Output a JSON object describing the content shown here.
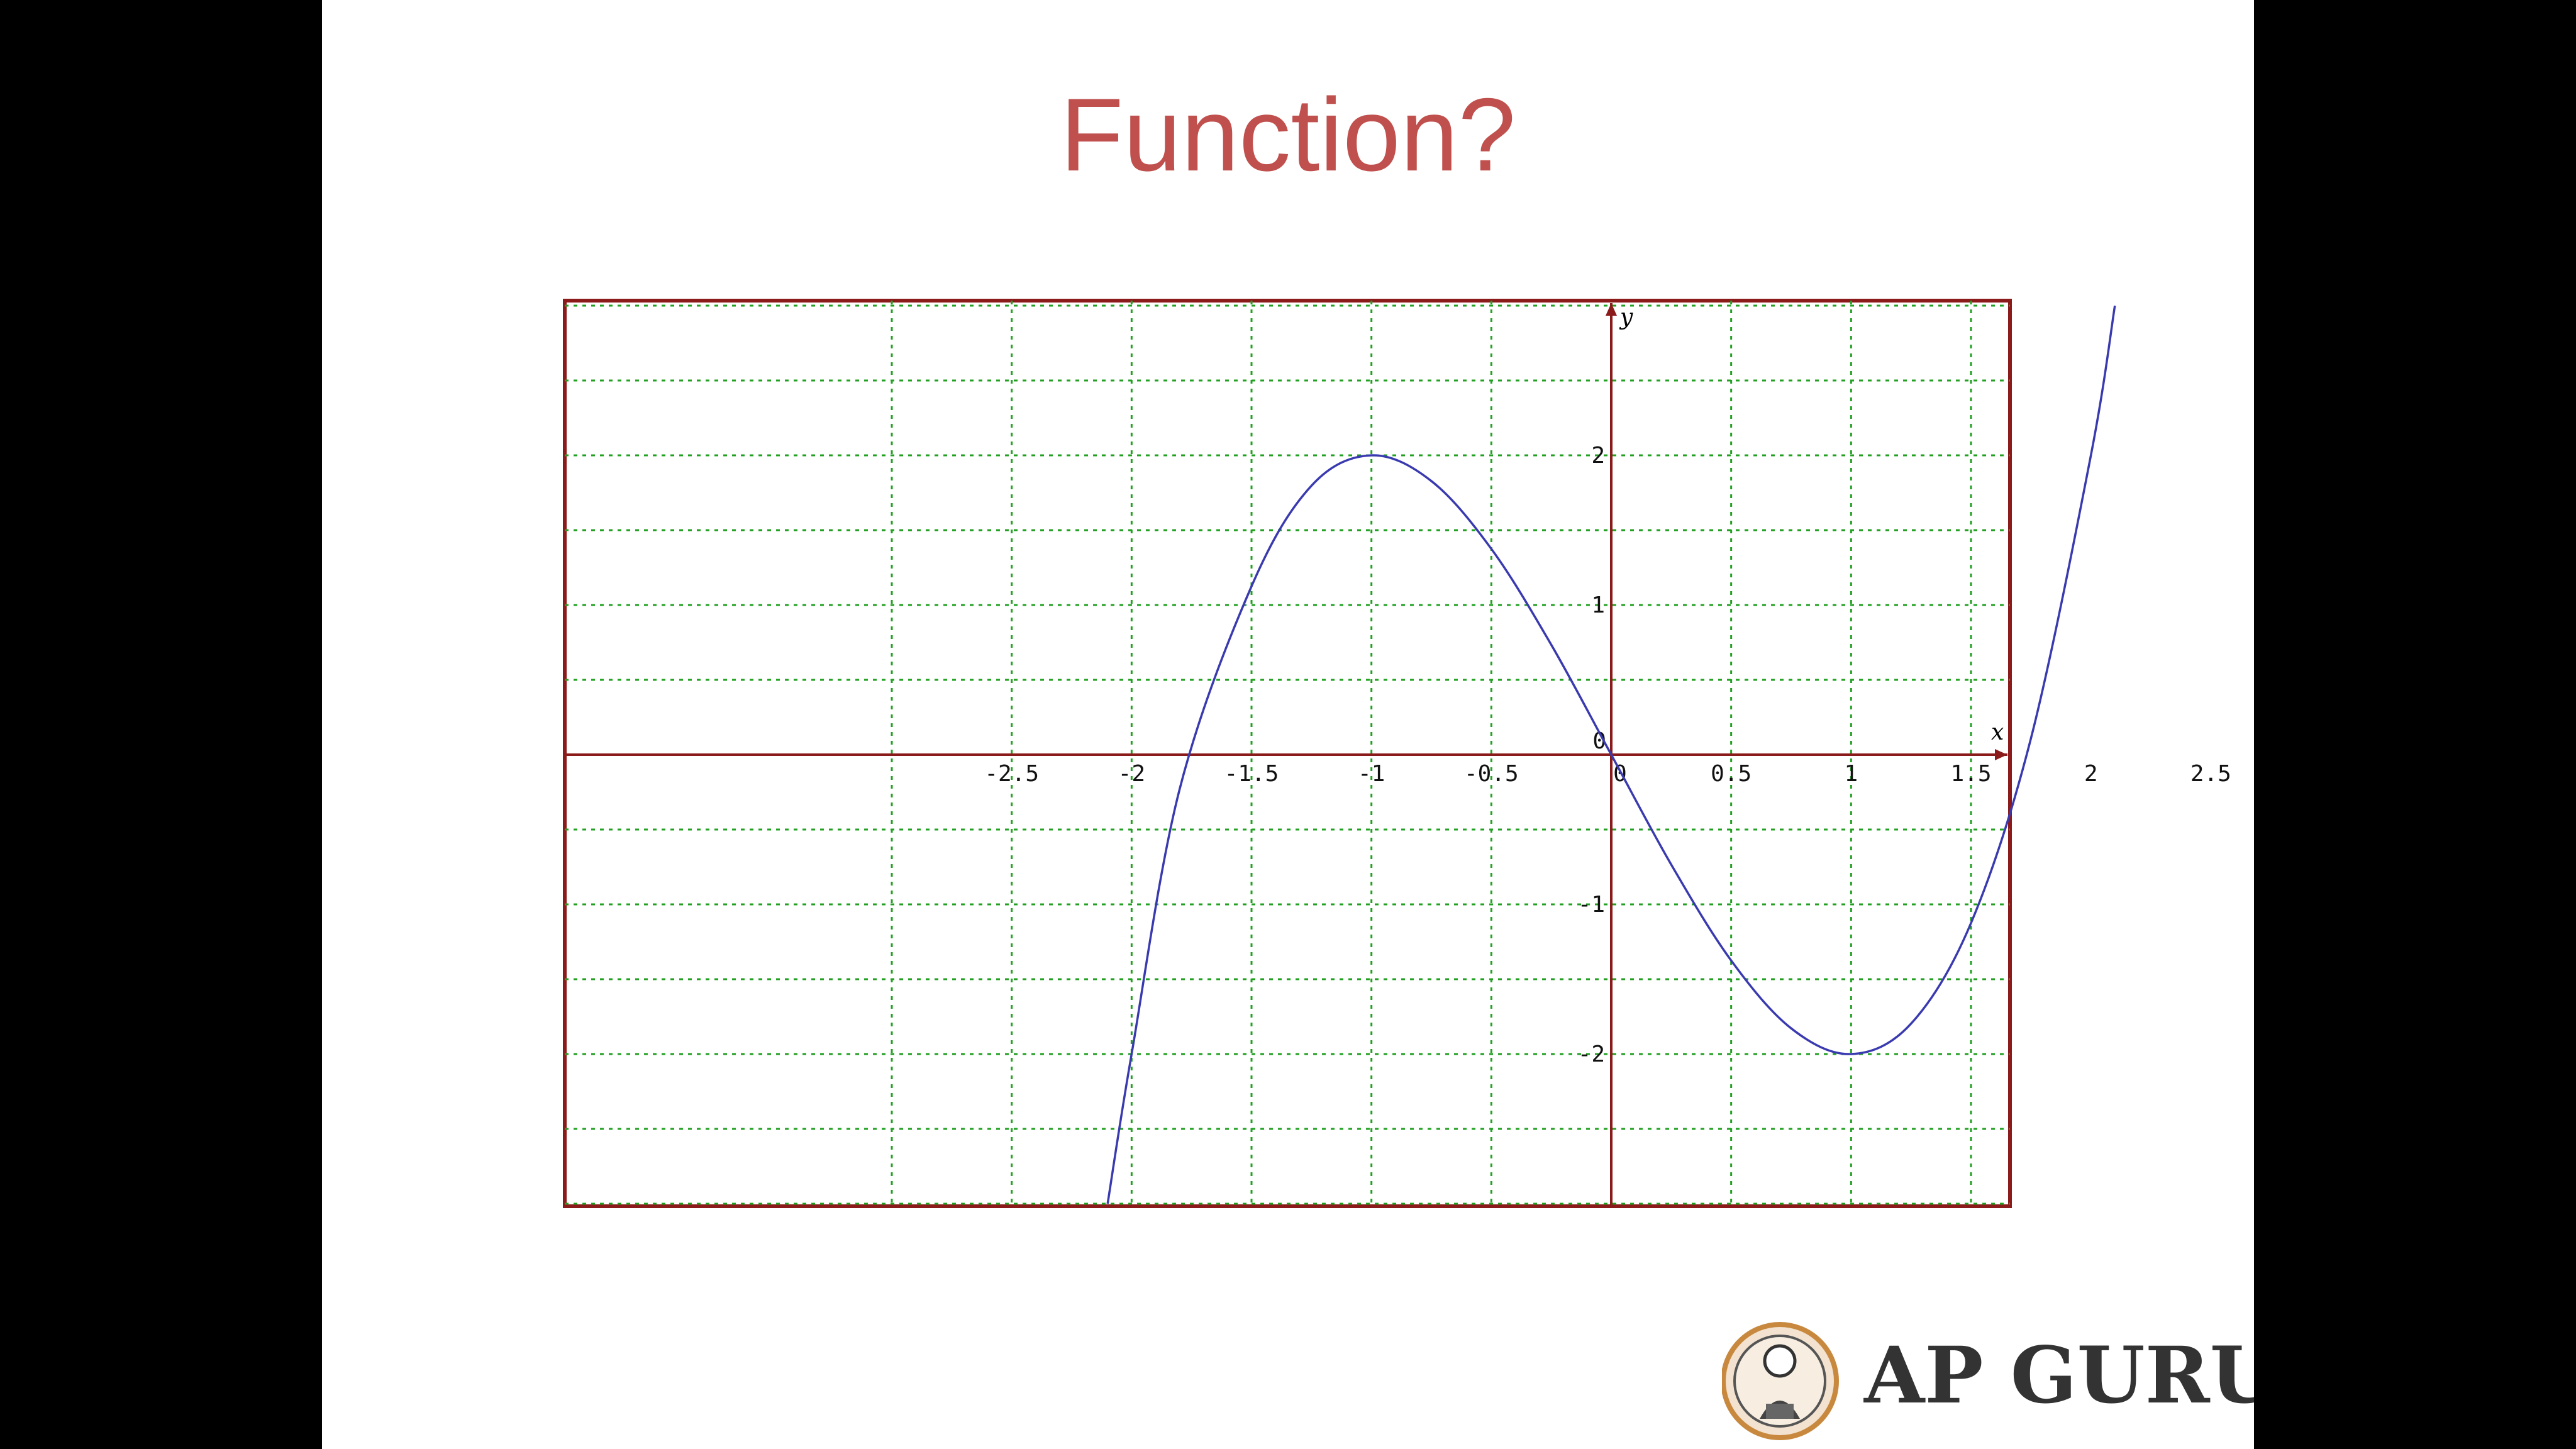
{
  "slide": {
    "title": "Function?"
  },
  "logo": {
    "text": "AP GURU"
  },
  "chart_data": {
    "type": "line",
    "title": "Function?",
    "xlabel": "x",
    "ylabel": "y",
    "xlim": [
      -3.0,
      3.0
    ],
    "ylim": [
      -3.0,
      3.0
    ],
    "grid": true,
    "x_ticks": [
      -2.5,
      -2,
      -1.5,
      -1,
      -0.5,
      0,
      0.5,
      1,
      1.5,
      2,
      2.5
    ],
    "x_tick_labels": [
      "-2.5",
      "-2",
      "-1.5",
      "-1",
      "-0.5",
      "0",
      "0.5",
      "1",
      "1.5",
      "2",
      "2.5"
    ],
    "y_ticks": [
      2,
      1,
      0,
      -1,
      -2
    ],
    "y_tick_labels": [
      "2",
      "1",
      "0",
      "-1",
      "-2"
    ],
    "series": [
      {
        "color": "#3a3ab0",
        "points": [
          [
            -2.1,
            -3.0
          ],
          [
            -2.0,
            -2.0
          ],
          [
            -1.8,
            -0.232
          ],
          [
            -1.5,
            1.125
          ],
          [
            -1.25,
            1.797
          ],
          [
            -1.0,
            2.0
          ],
          [
            -0.75,
            1.828
          ],
          [
            -0.5,
            1.375
          ],
          [
            -0.25,
            0.734
          ],
          [
            0.0,
            0.0
          ],
          [
            0.25,
            -0.734
          ],
          [
            0.5,
            -1.375
          ],
          [
            0.75,
            -1.828
          ],
          [
            1.0,
            -2.0
          ],
          [
            1.25,
            -1.797
          ],
          [
            1.5,
            -1.125
          ],
          [
            1.75,
            0.109
          ],
          [
            2.0,
            2.0
          ],
          [
            2.1,
            3.0
          ]
        ]
      }
    ],
    "colors": {
      "frame": "#8b1a1a",
      "grid": "#22a022",
      "axis": "#8b1a1a",
      "curve": "#3a3ab0"
    }
  }
}
